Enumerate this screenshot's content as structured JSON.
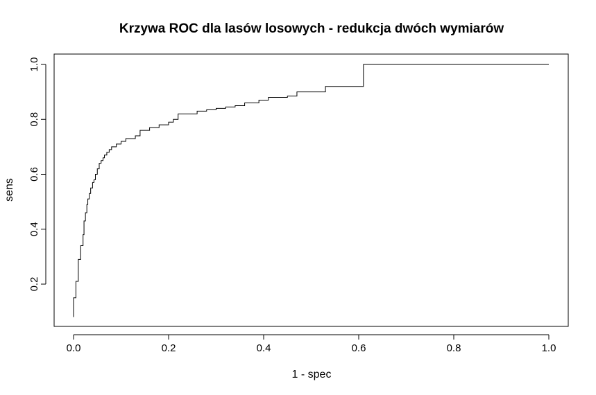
{
  "chart_data": {
    "type": "line",
    "title": "Krzywa ROC dla lasów losowych - redukcja dwóch wymiarów",
    "xlabel": "1 - spec",
    "ylabel": "sens",
    "xlim": [
      0.0,
      1.0
    ],
    "ylim": [
      0.2,
      1.0
    ],
    "xticks": [
      "0.0",
      "0.2",
      "0.4",
      "0.6",
      "0.8",
      "1.0"
    ],
    "yticks": [
      "0.2",
      "0.4",
      "0.6",
      "0.8",
      "1.0"
    ],
    "grid": false,
    "legend": "none",
    "series": [
      {
        "step": true,
        "x": [
          0.0,
          0.0,
          0.005,
          0.005,
          0.01,
          0.01,
          0.015,
          0.015,
          0.02,
          0.02,
          0.022,
          0.022,
          0.025,
          0.025,
          0.028,
          0.028,
          0.03,
          0.03,
          0.033,
          0.033,
          0.036,
          0.036,
          0.04,
          0.04,
          0.043,
          0.043,
          0.046,
          0.046,
          0.05,
          0.05,
          0.054,
          0.054,
          0.058,
          0.058,
          0.062,
          0.062,
          0.065,
          0.065,
          0.07,
          0.07,
          0.075,
          0.075,
          0.08,
          0.08,
          0.09,
          0.09,
          0.1,
          0.1,
          0.11,
          0.11,
          0.13,
          0.13,
          0.14,
          0.14,
          0.16,
          0.16,
          0.18,
          0.18,
          0.2,
          0.2,
          0.21,
          0.21,
          0.22,
          0.22,
          0.26,
          0.26,
          0.28,
          0.28,
          0.3,
          0.3,
          0.32,
          0.32,
          0.34,
          0.34,
          0.36,
          0.36,
          0.39,
          0.39,
          0.41,
          0.41,
          0.45,
          0.45,
          0.47,
          0.47,
          0.53,
          0.53,
          0.61,
          0.61,
          1.0
        ],
        "y": [
          0.08,
          0.15,
          0.15,
          0.21,
          0.21,
          0.29,
          0.29,
          0.34,
          0.34,
          0.38,
          0.38,
          0.43,
          0.43,
          0.46,
          0.46,
          0.49,
          0.49,
          0.51,
          0.51,
          0.53,
          0.53,
          0.55,
          0.55,
          0.57,
          0.57,
          0.58,
          0.58,
          0.6,
          0.6,
          0.62,
          0.62,
          0.64,
          0.64,
          0.65,
          0.65,
          0.66,
          0.66,
          0.67,
          0.67,
          0.68,
          0.68,
          0.69,
          0.69,
          0.7,
          0.7,
          0.71,
          0.71,
          0.72,
          0.72,
          0.73,
          0.73,
          0.74,
          0.74,
          0.76,
          0.76,
          0.77,
          0.77,
          0.78,
          0.78,
          0.79,
          0.79,
          0.8,
          0.8,
          0.82,
          0.82,
          0.83,
          0.83,
          0.835,
          0.835,
          0.84,
          0.84,
          0.845,
          0.845,
          0.85,
          0.85,
          0.86,
          0.86,
          0.87,
          0.87,
          0.88,
          0.88,
          0.885,
          0.885,
          0.9,
          0.9,
          0.92,
          0.92,
          1.0,
          1.0
        ]
      }
    ]
  }
}
